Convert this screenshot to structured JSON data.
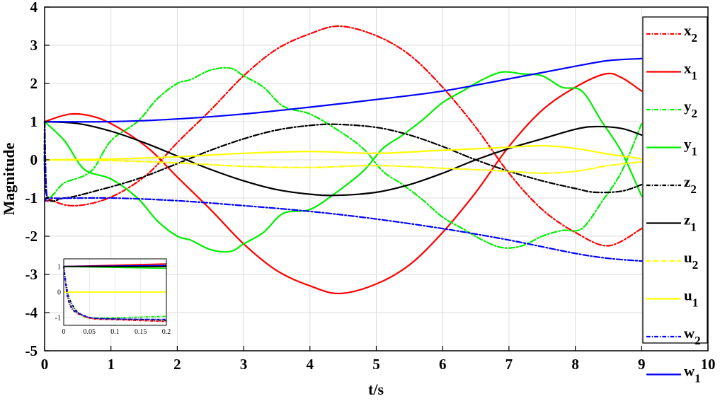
{
  "chart_data": {
    "type": "line",
    "xlabel": "t/s",
    "ylabel": "Magnitude",
    "xlim": [
      0,
      10
    ],
    "ylim": [
      -5,
      4
    ],
    "x_ticks": [
      "0",
      "1",
      "2",
      "3",
      "4",
      "5",
      "6",
      "7",
      "8",
      "9",
      "10"
    ],
    "y_ticks": [
      "4",
      "3",
      "2",
      "1",
      "0",
      "-1",
      "-2",
      "-3",
      "-4",
      "-5"
    ],
    "grid": true,
    "legend_position": "right",
    "series": [
      {
        "name": "x2",
        "base": "x",
        "sub": "2",
        "color": "#ff0000",
        "style": "dashdot",
        "points": [
          [
            0,
            1
          ],
          [
            0.03,
            -0.9
          ],
          [
            0.1,
            -1.05
          ],
          [
            0.4,
            -1.2
          ],
          [
            0.8,
            -1.1
          ],
          [
            1.2,
            -0.8
          ],
          [
            1.6,
            -0.3
          ],
          [
            2.0,
            0.45
          ],
          [
            2.5,
            1.3
          ],
          [
            3.0,
            2.2
          ],
          [
            3.5,
            2.9
          ],
          [
            4.0,
            3.3
          ],
          [
            4.45,
            3.5
          ],
          [
            5.0,
            3.25
          ],
          [
            5.5,
            2.75
          ],
          [
            6.0,
            1.9
          ],
          [
            6.5,
            0.85
          ],
          [
            7.0,
            -0.35
          ],
          [
            7.5,
            -1.3
          ],
          [
            8.0,
            -1.9
          ],
          [
            8.5,
            -2.25
          ],
          [
            9.0,
            -1.8
          ]
        ]
      },
      {
        "name": "x1",
        "base": "x",
        "sub": "1",
        "color": "#ff0000",
        "style": "solid",
        "points": [
          [
            0,
            1
          ],
          [
            0.4,
            1.2
          ],
          [
            0.8,
            1.1
          ],
          [
            1.2,
            0.75
          ],
          [
            1.6,
            0.25
          ],
          [
            2.0,
            -0.45
          ],
          [
            2.5,
            -1.3
          ],
          [
            3.0,
            -2.2
          ],
          [
            3.5,
            -2.9
          ],
          [
            4.0,
            -3.3
          ],
          [
            4.45,
            -3.5
          ],
          [
            5.0,
            -3.25
          ],
          [
            5.5,
            -2.75
          ],
          [
            6.0,
            -1.9
          ],
          [
            6.5,
            -0.85
          ],
          [
            7.0,
            0.35
          ],
          [
            7.5,
            1.3
          ],
          [
            8.0,
            1.9
          ],
          [
            8.45,
            2.25
          ],
          [
            8.7,
            2.15
          ],
          [
            9.0,
            1.8
          ]
        ]
      },
      {
        "name": "y2",
        "base": "y",
        "sub": "2",
        "color": "#00ee00",
        "style": "dashdot",
        "points": [
          [
            0,
            1
          ],
          [
            0.03,
            -0.9
          ],
          [
            0.3,
            -0.6
          ],
          [
            0.7,
            -0.3
          ],
          [
            1.0,
            0.5
          ],
          [
            1.4,
            1.0
          ],
          [
            1.7,
            1.6
          ],
          [
            2.0,
            2.0
          ],
          [
            2.2,
            2.1
          ],
          [
            2.5,
            2.35
          ],
          [
            2.8,
            2.4
          ],
          [
            3.0,
            2.2
          ],
          [
            3.3,
            1.9
          ],
          [
            3.6,
            1.4
          ],
          [
            4.0,
            1.2
          ],
          [
            4.4,
            0.8
          ],
          [
            4.8,
            0.3
          ],
          [
            5.1,
            -0.3
          ],
          [
            5.4,
            -0.65
          ],
          [
            5.7,
            -1.05
          ],
          [
            6.0,
            -1.5
          ],
          [
            6.3,
            -1.8
          ],
          [
            6.6,
            -2.1
          ],
          [
            6.9,
            -2.3
          ],
          [
            7.2,
            -2.25
          ],
          [
            7.5,
            -2.0
          ],
          [
            7.8,
            -1.85
          ],
          [
            8.1,
            -1.8
          ],
          [
            8.4,
            -1.1
          ],
          [
            8.7,
            -0.3
          ],
          [
            9.0,
            0.95
          ]
        ]
      },
      {
        "name": "y1",
        "base": "y",
        "sub": "1",
        "color": "#00ee00",
        "style": "solid",
        "points": [
          [
            0,
            1
          ],
          [
            0.3,
            0.5
          ],
          [
            0.6,
            -0.25
          ],
          [
            1.0,
            -0.5
          ],
          [
            1.4,
            -1.0
          ],
          [
            1.7,
            -1.6
          ],
          [
            2.0,
            -2.0
          ],
          [
            2.2,
            -2.1
          ],
          [
            2.5,
            -2.35
          ],
          [
            2.8,
            -2.4
          ],
          [
            3.0,
            -2.2
          ],
          [
            3.3,
            -1.9
          ],
          [
            3.6,
            -1.4
          ],
          [
            4.0,
            -1.3
          ],
          [
            4.4,
            -0.85
          ],
          [
            4.8,
            -0.3
          ],
          [
            5.1,
            0.3
          ],
          [
            5.4,
            0.65
          ],
          [
            5.7,
            1.05
          ],
          [
            6.0,
            1.5
          ],
          [
            6.3,
            1.8
          ],
          [
            6.6,
            2.1
          ],
          [
            6.9,
            2.3
          ],
          [
            7.2,
            2.25
          ],
          [
            7.5,
            2.2
          ],
          [
            7.8,
            1.9
          ],
          [
            8.1,
            1.8
          ],
          [
            8.4,
            1.0
          ],
          [
            8.7,
            0.2
          ],
          [
            9.0,
            -0.95
          ]
        ]
      },
      {
        "name": "z2",
        "base": "z",
        "sub": "2",
        "color": "#000000",
        "style": "dashdot",
        "points": [
          [
            0,
            1
          ],
          [
            0.03,
            -0.9
          ],
          [
            0.3,
            -1.0
          ],
          [
            0.8,
            -0.8
          ],
          [
            1.4,
            -0.5
          ],
          [
            2.0,
            -0.1
          ],
          [
            2.5,
            0.25
          ],
          [
            3.0,
            0.55
          ],
          [
            3.5,
            0.78
          ],
          [
            4.0,
            0.9
          ],
          [
            4.4,
            0.93
          ],
          [
            5.0,
            0.85
          ],
          [
            5.5,
            0.65
          ],
          [
            6.0,
            0.35
          ],
          [
            6.5,
            0.0
          ],
          [
            7.0,
            -0.3
          ],
          [
            7.5,
            -0.55
          ],
          [
            8.0,
            -0.75
          ],
          [
            8.3,
            -0.85
          ],
          [
            8.7,
            -0.82
          ],
          [
            9.0,
            -0.65
          ]
        ]
      },
      {
        "name": "z1",
        "base": "z",
        "sub": "1",
        "color": "#000000",
        "style": "solid",
        "points": [
          [
            0,
            1
          ],
          [
            0.5,
            0.95
          ],
          [
            1.0,
            0.75
          ],
          [
            1.5,
            0.45
          ],
          [
            2.0,
            0.1
          ],
          [
            2.5,
            -0.25
          ],
          [
            3.0,
            -0.55
          ],
          [
            3.5,
            -0.78
          ],
          [
            4.0,
            -0.9
          ],
          [
            4.4,
            -0.93
          ],
          [
            5.0,
            -0.85
          ],
          [
            5.5,
            -0.65
          ],
          [
            6.0,
            -0.35
          ],
          [
            6.5,
            0.0
          ],
          [
            7.0,
            0.3
          ],
          [
            7.5,
            0.55
          ],
          [
            8.0,
            0.8
          ],
          [
            8.3,
            0.87
          ],
          [
            8.7,
            0.82
          ],
          [
            9.0,
            0.65
          ]
        ]
      },
      {
        "name": "u2",
        "base": "u",
        "sub": "2",
        "color": "#ffff00",
        "style": "dashdot",
        "points": [
          [
            0,
            0
          ],
          [
            1.0,
            -0.02
          ],
          [
            2.0,
            -0.08
          ],
          [
            3.0,
            -0.17
          ],
          [
            4.0,
            -0.2
          ],
          [
            5.0,
            -0.15
          ],
          [
            6.0,
            -0.22
          ],
          [
            7.0,
            -0.3
          ],
          [
            7.5,
            -0.35
          ],
          [
            8.0,
            -0.3
          ],
          [
            8.5,
            -0.15
          ],
          [
            9.0,
            -0.05
          ]
        ]
      },
      {
        "name": "u1",
        "base": "u",
        "sub": "1",
        "color": "#ffff00",
        "style": "solid",
        "points": [
          [
            0,
            0
          ],
          [
            1.0,
            0.02
          ],
          [
            2.0,
            0.08
          ],
          [
            3.0,
            0.17
          ],
          [
            4.0,
            0.22
          ],
          [
            5.0,
            0.17
          ],
          [
            6.0,
            0.25
          ],
          [
            7.0,
            0.33
          ],
          [
            7.5,
            0.37
          ],
          [
            8.0,
            0.3
          ],
          [
            8.5,
            0.15
          ],
          [
            9.0,
            0.03
          ]
        ]
      },
      {
        "name": "w2",
        "base": "w",
        "sub": "2",
        "color": "#0000ff",
        "style": "dashdot",
        "points": [
          [
            0,
            1
          ],
          [
            0.03,
            -0.9
          ],
          [
            0.1,
            -1.0
          ],
          [
            1.0,
            -1.0
          ],
          [
            2.0,
            -1.07
          ],
          [
            3.0,
            -1.2
          ],
          [
            4.0,
            -1.35
          ],
          [
            5.0,
            -1.55
          ],
          [
            6.0,
            -1.8
          ],
          [
            7.0,
            -2.1
          ],
          [
            8.0,
            -2.45
          ],
          [
            8.5,
            -2.58
          ],
          [
            9.0,
            -2.65
          ]
        ]
      },
      {
        "name": "w1",
        "base": "w",
        "sub": "1",
        "color": "#0000ff",
        "style": "solid",
        "points": [
          [
            0,
            1
          ],
          [
            1.0,
            1.0
          ],
          [
            2.0,
            1.07
          ],
          [
            3.0,
            1.2
          ],
          [
            4.0,
            1.38
          ],
          [
            5.0,
            1.58
          ],
          [
            6.0,
            1.8
          ],
          [
            7.0,
            2.12
          ],
          [
            8.0,
            2.45
          ],
          [
            8.5,
            2.6
          ],
          [
            9.0,
            2.65
          ]
        ]
      }
    ],
    "inset": {
      "xlim": [
        0,
        0.2
      ],
      "ylim": [
        -1.3,
        1.3
      ],
      "x_ticks": [
        "0",
        "0.05",
        "0.1",
        "0.15",
        "0.2"
      ],
      "y_ticks": [
        "1",
        "0",
        "-1"
      ],
      "series": [
        {
          "color": "#ff0000",
          "style": "solid",
          "points": [
            [
              0,
              1
            ],
            [
              0.2,
              1.1
            ]
          ]
        },
        {
          "color": "#0000ff",
          "style": "solid",
          "points": [
            [
              0,
              1
            ],
            [
              0.2,
              1.04
            ]
          ]
        },
        {
          "color": "#00ee00",
          "style": "solid",
          "points": [
            [
              0,
              1
            ],
            [
              0.2,
              0.93
            ]
          ]
        },
        {
          "color": "#000000",
          "style": "solid",
          "points": [
            [
              0,
              1
            ],
            [
              0.2,
              1.0
            ]
          ]
        },
        {
          "color": "#ffff00",
          "style": "solid",
          "points": [
            [
              0,
              0
            ],
            [
              0.2,
              0.0
            ]
          ]
        },
        {
          "color": "#000000",
          "style": "dashdot",
          "points": [
            [
              0,
              1
            ],
            [
              0.005,
              0.3
            ],
            [
              0.01,
              -0.2
            ],
            [
              0.02,
              -0.6
            ],
            [
              0.03,
              -0.82
            ],
            [
              0.05,
              -1.0
            ],
            [
              0.1,
              -1.05
            ],
            [
              0.2,
              -1.1
            ]
          ]
        },
        {
          "color": "#00ee00",
          "style": "dashdot",
          "points": [
            [
              0,
              1
            ],
            [
              0.005,
              0.2
            ],
            [
              0.01,
              -0.3
            ],
            [
              0.02,
              -0.7
            ],
            [
              0.035,
              -0.9
            ],
            [
              0.05,
              -1.0
            ],
            [
              0.1,
              -1.0
            ],
            [
              0.2,
              -0.95
            ]
          ]
        },
        {
          "color": "#ff0000",
          "style": "dashdot",
          "points": [
            [
              0,
              1
            ],
            [
              0.005,
              0.1
            ],
            [
              0.01,
              -0.4
            ],
            [
              0.02,
              -0.75
            ],
            [
              0.04,
              -0.95
            ],
            [
              0.06,
              -1.05
            ],
            [
              0.1,
              -1.08
            ],
            [
              0.2,
              -1.15
            ]
          ]
        },
        {
          "color": "#0000ff",
          "style": "dashdot",
          "points": [
            [
              0,
              1
            ],
            [
              0.005,
              0.15
            ],
            [
              0.01,
              -0.35
            ],
            [
              0.02,
              -0.72
            ],
            [
              0.04,
              -0.92
            ],
            [
              0.06,
              -1.02
            ],
            [
              0.1,
              -1.05
            ],
            [
              0.2,
              -1.07
            ]
          ]
        }
      ]
    }
  }
}
